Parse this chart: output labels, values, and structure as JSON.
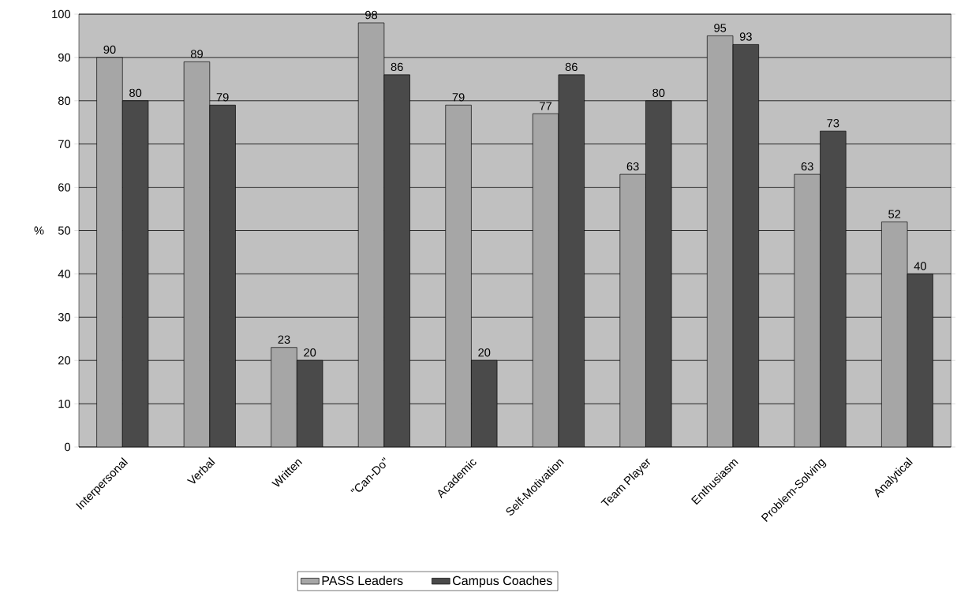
{
  "chart_data": {
    "type": "bar",
    "ylabel": "%",
    "categories": [
      "Interpersonal",
      "Verbal",
      "Written",
      "\"Can-Do\"",
      "Academic",
      "Self-Motivation",
      "Team Player",
      "Enthusiasm",
      "Problem-Solving",
      "Analytical"
    ],
    "series": [
      {
        "name": "PASS Leaders",
        "color": "#a6a6a6",
        "values": [
          90,
          89,
          23,
          98,
          79,
          77,
          63,
          95,
          63,
          52
        ]
      },
      {
        "name": "Campus Coaches",
        "color": "#4a4a4a",
        "values": [
          80,
          79,
          20,
          86,
          20,
          86,
          80,
          93,
          73,
          40
        ]
      }
    ],
    "ylim": [
      0,
      100
    ],
    "yticks": [
      0,
      10,
      20,
      30,
      40,
      50,
      60,
      70,
      80,
      90,
      100
    ],
    "grid": "y",
    "legend": "bottom",
    "data_labels": true
  }
}
